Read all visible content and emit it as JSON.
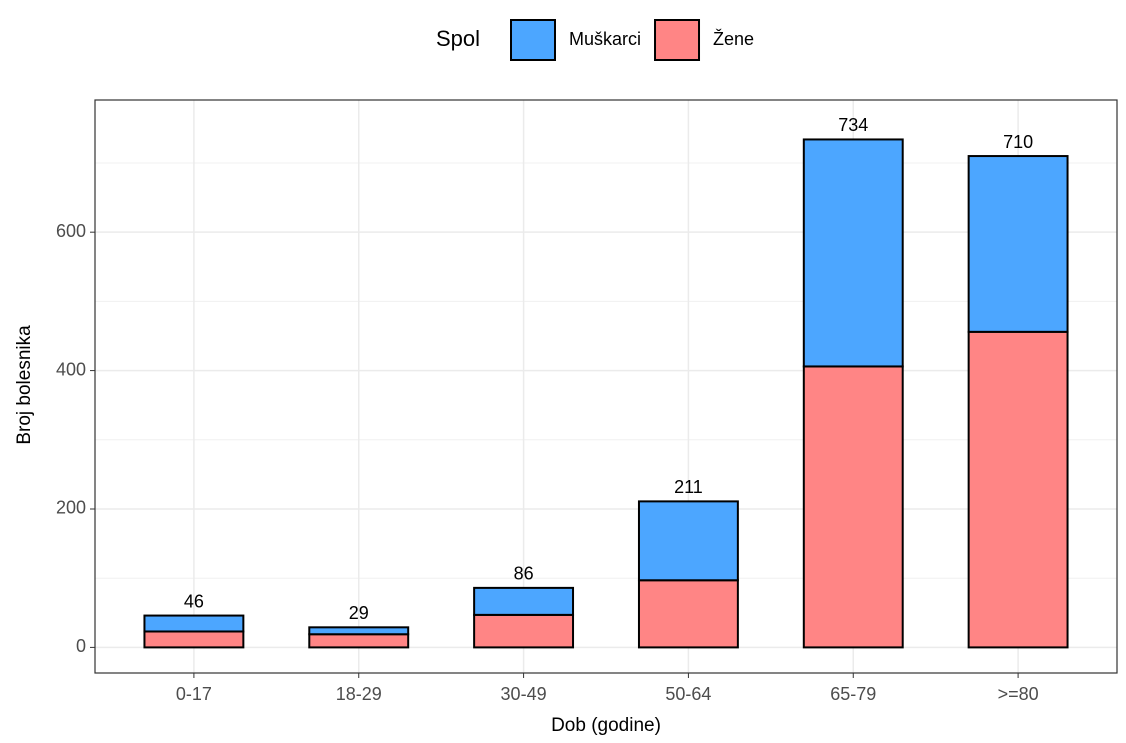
{
  "chart_data": {
    "type": "stacked_bar",
    "x_label": "Dob (godine)",
    "y_label": "Broj bolesnika",
    "legend_title": "Spol",
    "legend_position": "top",
    "categories": [
      "0-17",
      "18-29",
      "30-49",
      "50-64",
      "65-79",
      ">=80"
    ],
    "series": [
      {
        "name": "Žene",
        "color": "#ff8585",
        "values": [
          23,
          19,
          47,
          97,
          406,
          456
        ]
      },
      {
        "name": "Muškarci",
        "color": "#4ca6ff",
        "values": [
          23,
          10,
          39,
          114,
          328,
          254
        ]
      }
    ],
    "totals": [
      46,
      29,
      86,
      211,
      734,
      710
    ],
    "ylim": [
      -37,
      791
    ],
    "yticks": [
      0,
      200,
      400,
      600
    ],
    "yminor": [
      100,
      300,
      500,
      700
    ],
    "grid": true
  }
}
